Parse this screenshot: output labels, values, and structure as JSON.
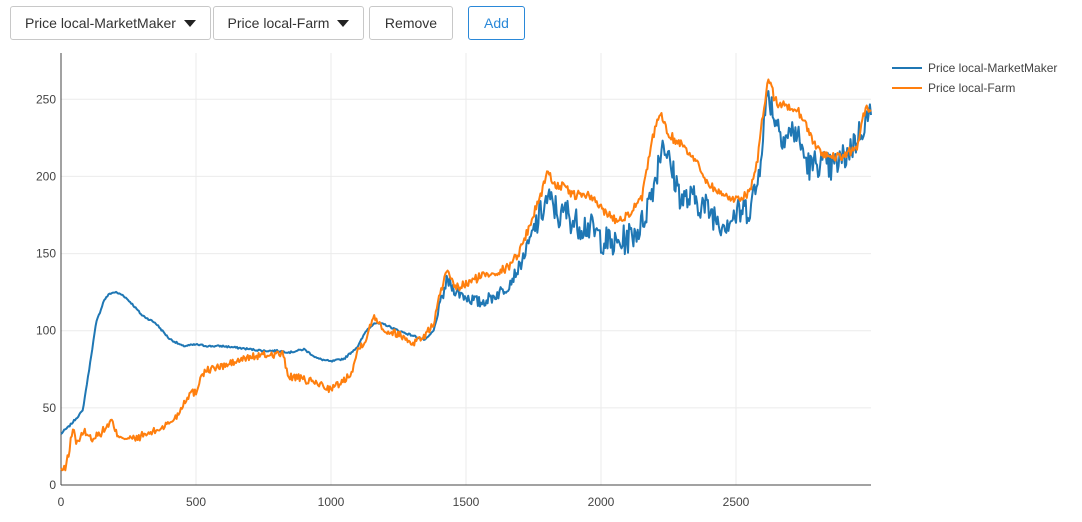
{
  "toolbar": {
    "dropdown1": {
      "label": "Price local-MarketMaker",
      "icon": "caret-down-icon"
    },
    "dropdown2": {
      "label": "Price local-Farm",
      "icon": "caret-down-icon"
    },
    "remove_label": "Remove",
    "add_label": "Add",
    "add_color": "#2a88d8"
  },
  "chart_data": {
    "type": "line",
    "title": "",
    "xlabel": "",
    "ylabel": "",
    "xlim": [
      0,
      3000
    ],
    "ylim": [
      0,
      280
    ],
    "x_ticks": [
      0,
      500,
      1000,
      1500,
      2000,
      2500
    ],
    "y_ticks": [
      0,
      50,
      100,
      150,
      200,
      250
    ],
    "grid": true,
    "legend": "top-right",
    "series": [
      {
        "name": "Price local-MarketMaker",
        "color": "#1f77b4",
        "noise": [
          0,
          0,
          0,
          0,
          0,
          0,
          0,
          0,
          0,
          0,
          0,
          0,
          0,
          0,
          0,
          0,
          0,
          0,
          0,
          0,
          0,
          0,
          0,
          0,
          0,
          0,
          0,
          0,
          0,
          0,
          0,
          0,
          0,
          0,
          0,
          0,
          0,
          0,
          0,
          0,
          0,
          0,
          0,
          0,
          0,
          0,
          0,
          0,
          0,
          0,
          0,
          0,
          0,
          0,
          0,
          0,
          0,
          0,
          0,
          0,
          0,
          0,
          0,
          0,
          0,
          0,
          0,
          0,
          0,
          0,
          0,
          0,
          0,
          8,
          8,
          8,
          14,
          14,
          14,
          18,
          18,
          18,
          22,
          22,
          22,
          18,
          18,
          18,
          22,
          22,
          22,
          20,
          20,
          20,
          16,
          16,
          16,
          18,
          18,
          18,
          24,
          24,
          24,
          14,
          14,
          14
        ],
        "x": [
          0,
          10,
          30,
          50,
          80,
          100,
          130,
          160,
          180,
          200,
          230,
          260,
          300,
          350,
          400,
          450,
          500,
          550,
          600,
          650,
          700,
          750,
          800,
          850,
          900,
          950,
          1000,
          1050,
          1100,
          1130,
          1160,
          1200,
          1250,
          1300,
          1350,
          1380,
          1410,
          1430,
          1450,
          1470,
          1500,
          1550,
          1600,
          1650,
          1700,
          1750,
          1800,
          1830,
          1850,
          1870,
          1900,
          1950,
          2000,
          2050,
          2100,
          2150,
          2200,
          2230,
          2250,
          2280,
          2300,
          2350,
          2400,
          2450,
          2500,
          2550,
          2580,
          2600,
          2620,
          2640,
          2660,
          2680,
          2700,
          2720,
          2740,
          2760,
          2780,
          2800,
          2850,
          2900,
          2950,
          2980,
          3000
        ],
        "y": [
          33,
          35,
          38,
          42,
          48,
          70,
          105,
          120,
          124,
          125,
          123,
          118,
          110,
          105,
          95,
          90,
          91,
          90,
          90,
          89,
          88,
          87,
          87,
          86,
          88,
          82,
          80,
          82,
          90,
          100,
          105,
          104,
          100,
          97,
          94,
          100,
          120,
          133,
          128,
          125,
          122,
          118,
          122,
          128,
          142,
          165,
          185,
          180,
          172,
          178,
          170,
          168,
          160,
          155,
          160,
          168,
          198,
          225,
          210,
          195,
          185,
          185,
          178,
          170,
          175,
          180,
          195,
          230,
          255,
          240,
          232,
          225,
          228,
          230,
          220,
          210,
          205,
          210,
          205,
          212,
          225,
          237,
          240
        ]
      },
      {
        "name": "Price local-Farm",
        "color": "#ff7f0e",
        "x": [
          0,
          15,
          30,
          45,
          55,
          70,
          90,
          110,
          130,
          150,
          170,
          190,
          200,
          220,
          250,
          280,
          300,
          320,
          350,
          380,
          400,
          430,
          460,
          480,
          500,
          520,
          550,
          600,
          650,
          700,
          750,
          800,
          820,
          840,
          850,
          870,
          900,
          950,
          1000,
          1050,
          1080,
          1100,
          1130,
          1150,
          1160,
          1200,
          1250,
          1300,
          1350,
          1380,
          1410,
          1430,
          1450,
          1470,
          1500,
          1550,
          1600,
          1650,
          1700,
          1750,
          1780,
          1800,
          1830,
          1860,
          1900,
          1950,
          2000,
          2050,
          2100,
          2150,
          2200,
          2220,
          2250,
          2280,
          2300,
          2350,
          2400,
          2450,
          2500,
          2550,
          2580,
          2600,
          2620,
          2640,
          2660,
          2680,
          2700,
          2720,
          2740,
          2760,
          2780,
          2800,
          2850,
          2900,
          2950,
          2980,
          3000
        ],
        "y": [
          10,
          10,
          22,
          38,
          28,
          30,
          35,
          30,
          32,
          34,
          38,
          42,
          34,
          32,
          30,
          30,
          32,
          33,
          35,
          38,
          40,
          45,
          55,
          60,
          60,
          72,
          75,
          77,
          80,
          83,
          84,
          85,
          85,
          72,
          70,
          70,
          68,
          66,
          62,
          68,
          75,
          88,
          95,
          105,
          110,
          100,
          98,
          92,
          97,
          105,
          128,
          138,
          130,
          128,
          130,
          135,
          138,
          140,
          152,
          175,
          190,
          203,
          195,
          193,
          188,
          188,
          180,
          172,
          175,
          185,
          232,
          240,
          228,
          222,
          222,
          210,
          195,
          188,
          185,
          190,
          210,
          240,
          265,
          252,
          245,
          248,
          243,
          245,
          240,
          233,
          225,
          218,
          212,
          213,
          220,
          245,
          242
        ]
      }
    ]
  }
}
